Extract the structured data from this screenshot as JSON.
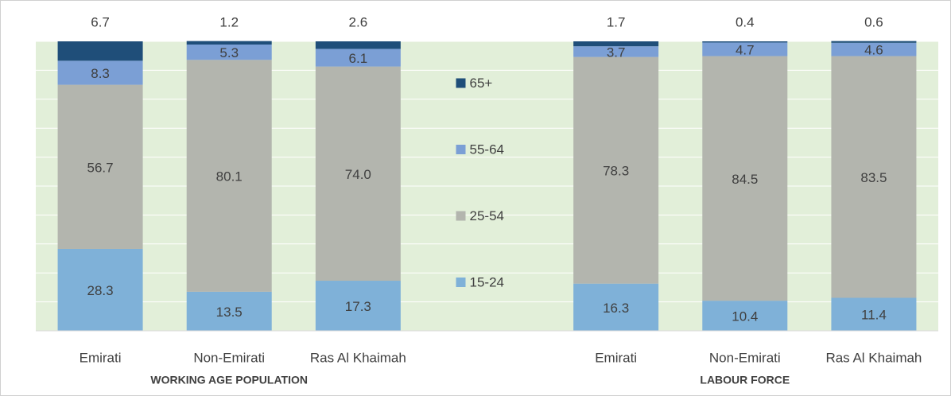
{
  "chart_data": {
    "type": "stacked_bar",
    "categories": [
      "Emirati",
      "Non-Emirati",
      "Ras Al Khaimah",
      null,
      "Emirati",
      "Non-Emirati",
      "Ras Al Khaimah"
    ],
    "group_labels": [
      "WORKING AGE POPULATION",
      "LABOUR FORCE"
    ],
    "series": [
      {
        "name": "15-24",
        "color": "#7fb1d8",
        "values": [
          28.3,
          13.5,
          17.3,
          null,
          16.3,
          10.4,
          11.4
        ]
      },
      {
        "name": "25-54",
        "color": "#b3b5ae",
        "values": [
          56.7,
          80.1,
          74.0,
          null,
          78.3,
          84.5,
          83.5
        ],
        "value_labels": [
          "56.7",
          "80.1",
          "74.0",
          null,
          "78.3",
          "84.5",
          "83.5"
        ]
      },
      {
        "name": "55-64",
        "color": "#7b9fd5",
        "values": [
          8.3,
          5.3,
          6.1,
          null,
          3.7,
          4.7,
          4.6
        ]
      },
      {
        "name": "65+",
        "color": "#1f4e79",
        "values": [
          6.7,
          1.2,
          2.6,
          null,
          1.7,
          0.4,
          0.6
        ]
      }
    ],
    "ylim": [
      0,
      100
    ],
    "yticks": [
      0,
      10,
      20,
      30,
      40,
      50,
      60,
      70,
      80,
      90,
      100
    ],
    "grid": true
  }
}
